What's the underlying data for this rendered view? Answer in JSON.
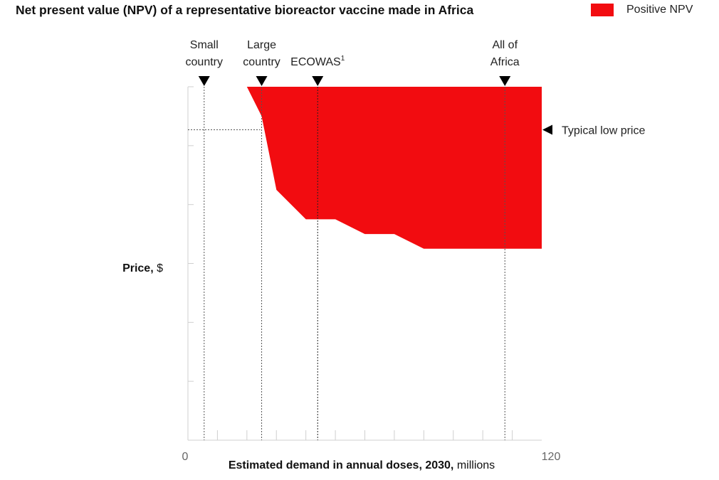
{
  "title": "Net present value (NPV) of a representative bioreactor vaccine made in Africa",
  "legend": {
    "label": "Positive NPV",
    "color": "#f20c10"
  },
  "chart_data": {
    "type": "area",
    "title": "Net present value (NPV) of a representative bioreactor vaccine made in Africa",
    "xlabel_bold": "Estimated demand in annual doses, 2030,",
    "xlabel_unit": " millions",
    "ylabel_bold": "Price,",
    "ylabel_unit": " $",
    "xlim": [
      0,
      120
    ],
    "ylim": [
      0,
      6
    ],
    "x_tick_labels": [
      {
        "value": 0,
        "label": "0"
      },
      {
        "value": 120,
        "label": "120"
      }
    ],
    "x_minor_ticks": [
      10,
      20,
      30,
      40,
      50,
      60,
      70,
      80,
      90,
      100,
      110
    ],
    "y_minor_ticks": [
      1,
      2,
      3,
      4,
      5
    ],
    "series": [
      {
        "fill": "#f20c10",
        "boundary": [
          {
            "x": 20,
            "y": 6
          },
          {
            "x": 120,
            "y": 6
          },
          {
            "x": 120,
            "y": 3.25
          },
          {
            "x": 80,
            "y": 3.25
          },
          {
            "x": 70,
            "y": 3.5
          },
          {
            "x": 60,
            "y": 3.5
          },
          {
            "x": 50,
            "y": 3.75
          },
          {
            "x": 40,
            "y": 3.75
          },
          {
            "x": 30,
            "y": 4.25
          },
          {
            "x": 25,
            "y": 5.5
          }
        ]
      }
    ],
    "markers": [
      {
        "x": 5.5,
        "label_lines": [
          "Small",
          "country"
        ]
      },
      {
        "x": 25,
        "label_lines": [
          "Large",
          "country"
        ]
      },
      {
        "x": 44,
        "label_lines": [
          "ECOWAS"
        ],
        "sup": "1"
      },
      {
        "x": 107.5,
        "label_lines": [
          "All of",
          "Africa"
        ]
      }
    ],
    "reference": {
      "y": 5.27,
      "label": "Typical low price"
    }
  }
}
